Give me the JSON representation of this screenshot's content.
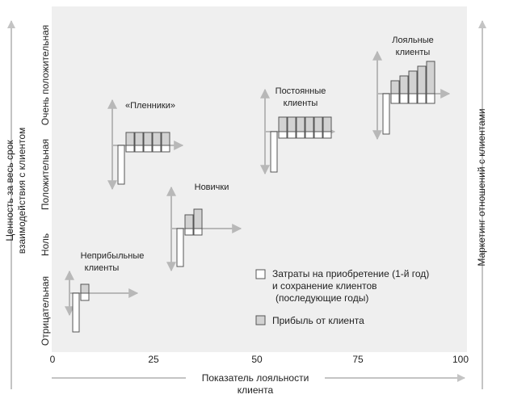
{
  "diagram": {
    "left_axis_label_1": "Ценность за весь срок",
    "left_axis_label_2": "взаимодействия с клиентом",
    "right_axis_label": "Маркетинг отношений с клиентами",
    "bottom_axis_label_1": "Показатель лояльности",
    "bottom_axis_label_2": "клиента",
    "y_levels": [
      "Отрицательная",
      "Ноль",
      "Положительная",
      "Очень положительная"
    ],
    "x_ticks": [
      "0",
      "25",
      "50",
      "75",
      "100"
    ],
    "groups": {
      "unprofitable": {
        "label_1": "Неприбыльные",
        "label_2": "клиенты"
      },
      "captives": {
        "label_1": "«Пленники»"
      },
      "newcomers": {
        "label_1": "Новички"
      },
      "regulars": {
        "label_1": "Постоянные",
        "label_2": "клиенты"
      },
      "loyal": {
        "label_1": "Лояльные",
        "label_2": "клиенты"
      }
    },
    "legend": {
      "costs_1": "Затраты на приобретение (1-й год)",
      "costs_2": "и сохранение клиентов",
      "costs_3": "(последующие годы)",
      "profit": "Прибыль от клиента"
    },
    "colors": {
      "panel": "#efefef",
      "profit_bar": "#d2d2d2",
      "cost_bar": "#ffffff",
      "stroke": "#555555",
      "arrow": "#b8b8b8",
      "frame_arrow": "#c4c4c4"
    }
  }
}
